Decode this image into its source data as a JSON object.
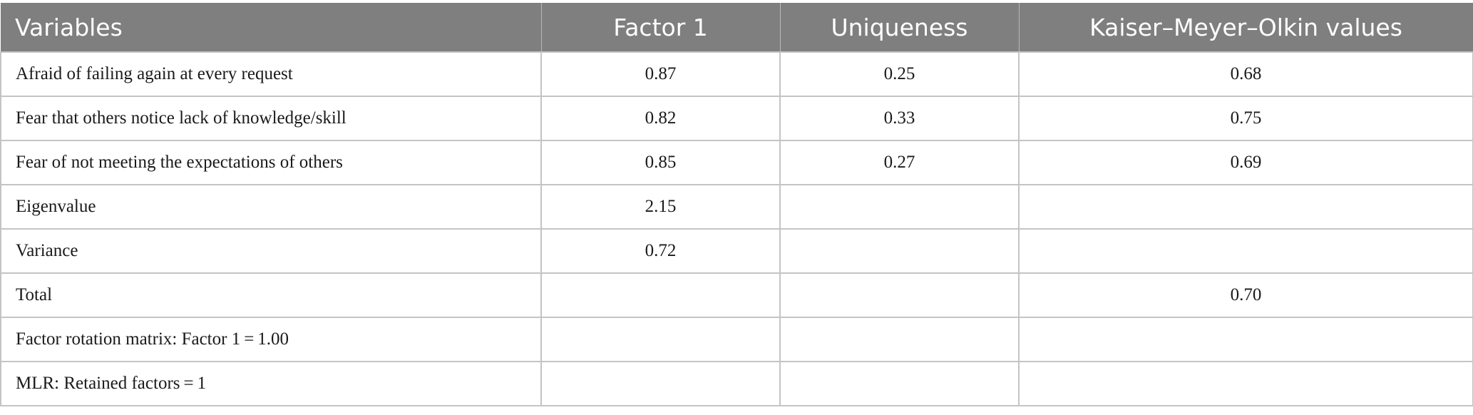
{
  "table": {
    "headers": [
      "Variables",
      "Factor 1",
      "Uniqueness",
      "Kaiser–Meyer–Olkin values"
    ],
    "rows": [
      [
        "Afraid of failing again at every request",
        "0.87",
        "0.25",
        "0.68"
      ],
      [
        "Fear that others notice lack of knowledge/skill",
        "0.82",
        "0.33",
        "0.75"
      ],
      [
        "Fear of not meeting the expectations of others",
        "0.85",
        "0.27",
        "0.69"
      ],
      [
        "Eigenvalue",
        "2.15",
        "",
        ""
      ],
      [
        "Variance",
        "0.72",
        "",
        ""
      ],
      [
        "Total",
        "",
        "",
        "0.70"
      ],
      [
        "Factor rotation matrix: Factor 1 = 1.00",
        "",
        "",
        ""
      ],
      [
        "MLR: Retained factors = 1",
        "",
        "",
        ""
      ]
    ]
  },
  "colors": {
    "header_background": "#7e7f7e",
    "header_text": "#ffffff",
    "grid_lines": "#c4c4c4"
  }
}
